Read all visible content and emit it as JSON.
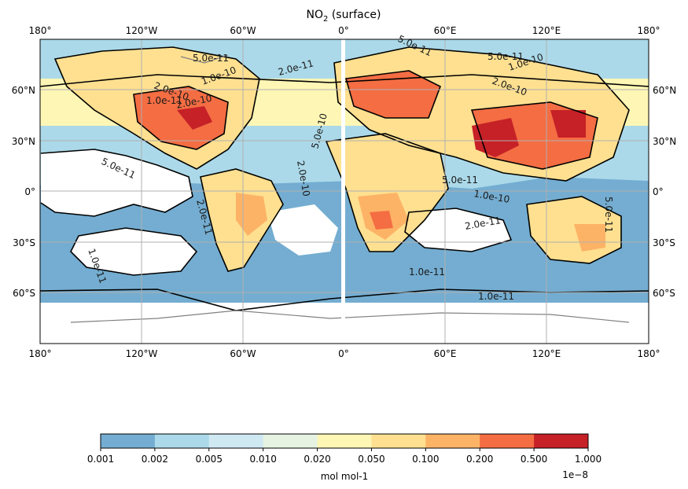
{
  "title": "NO",
  "title_sub": "2",
  "title_rest": " (surface)",
  "lon_ticks": [
    "180°",
    "120°W",
    "60°W",
    "0°",
    "60°E",
    "120°E",
    "180°"
  ],
  "lat_ticks": [
    "60°N",
    "30°N",
    "0°",
    "30°S",
    "60°S"
  ],
  "contour_labels": [
    "5.0e-11",
    "1.0e-10",
    "2.0e-10",
    "2.0e-11",
    "1.0e-11",
    "2.0e-10",
    "5.0e-11",
    "1.0e-10",
    "5.0e-11",
    "2.0e-10",
    "5.0e-11",
    "5.0e-10",
    "2.0e-10",
    "5.0e-11",
    "2.0e-11",
    "1.0e-11",
    "2.0e-11",
    "1.0e-11",
    "1.0e-11",
    "5.0e-11",
    "1.0e-10"
  ],
  "colorbar": {
    "ticks": [
      "0.001",
      "0.002",
      "0.005",
      "0.010",
      "0.020",
      "0.050",
      "0.100",
      "0.200",
      "0.500",
      "1.000"
    ],
    "colors": [
      "#74add1",
      "#abd9e9",
      "#cfe9f3",
      "#e6f3e3",
      "#fef6b5",
      "#fee090",
      "#fdb366",
      "#f46d43",
      "#c62127"
    ],
    "label": "mol mol-1",
    "multiplier": "1e−8"
  },
  "palette": {
    "ocean_low": "#74add1",
    "ocean_mid": "#abd9e9",
    "land_low": "#fef6b5",
    "land_mid": "#fee090",
    "land_high": "#fdb366",
    "hotspot": "#f46d43",
    "peak": "#c62127"
  }
}
